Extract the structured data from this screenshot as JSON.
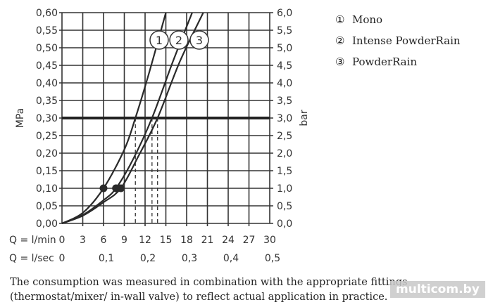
{
  "chart_data": {
    "type": "line",
    "title": "",
    "xlabel": "Q = l/min",
    "xlabel_secondary": "Q = l/sec",
    "ylabel": "MPa",
    "ylabel_right": "bar",
    "xlim": [
      0,
      30
    ],
    "ylim": [
      0,
      0.6
    ],
    "grid": true,
    "x_ticks": [
      "0",
      "3",
      "6",
      "9",
      "12",
      "15",
      "18",
      "21",
      "24",
      "27",
      "30"
    ],
    "x_ticks_secondary": [
      "0",
      "0,1",
      "0,2",
      "0,3",
      "0,4",
      "0,5"
    ],
    "y_ticks": [
      "0,00",
      "0,05",
      "0,10",
      "0,15",
      "0,20",
      "0,25",
      "0,30",
      "0,35",
      "0,40",
      "0,45",
      "0,50",
      "0,55",
      "0,60"
    ],
    "y_ticks_right": [
      "0,0",
      "0,5",
      "1,0",
      "1,5",
      "2,0",
      "2,5",
      "3,0",
      "3,5",
      "4,0",
      "4,5",
      "5,0",
      "5,5",
      "6,0"
    ],
    "reference_line": {
      "y": 0.3,
      "label": "3 bar"
    },
    "series": [
      {
        "id": "1",
        "name": "Mono",
        "marker_label": "①",
        "points": [
          [
            0,
            0
          ],
          [
            3,
            0.03
          ],
          [
            6,
            0.1
          ],
          [
            9,
            0.21
          ],
          [
            10.6,
            0.3
          ],
          [
            12.6,
            0.43
          ],
          [
            15,
            0.6
          ]
        ],
        "dot": [
          6,
          0.1
        ],
        "q_at_ref": 10.6
      },
      {
        "id": "2",
        "name": "Intense PowderRain",
        "marker_label": "②",
        "points": [
          [
            0,
            0
          ],
          [
            3,
            0.024
          ],
          [
            6,
            0.066
          ],
          [
            7.8,
            0.1
          ],
          [
            10.2,
            0.18
          ],
          [
            13,
            0.3
          ],
          [
            16,
            0.46
          ],
          [
            18.8,
            0.6
          ]
        ],
        "dot": [
          7.8,
          0.1
        ],
        "q_at_ref": 13.0
      },
      {
        "id": "3",
        "name": "PowderRain",
        "marker_label": "③",
        "points": [
          [
            0,
            0
          ],
          [
            3,
            0.022
          ],
          [
            6,
            0.06
          ],
          [
            8.5,
            0.1
          ],
          [
            11,
            0.19
          ],
          [
            13.8,
            0.3
          ],
          [
            17,
            0.46
          ],
          [
            20.4,
            0.6
          ]
        ],
        "dot": [
          8.5,
          0.1
        ],
        "q_at_ref": 13.8
      }
    ],
    "legend_position": "right"
  },
  "caption": "The consumption was measured in combination with the appropriate fittings (thermostat/mixer/ in-wall valve) to reflect actual application in practice.",
  "watermark": "multicom.by"
}
